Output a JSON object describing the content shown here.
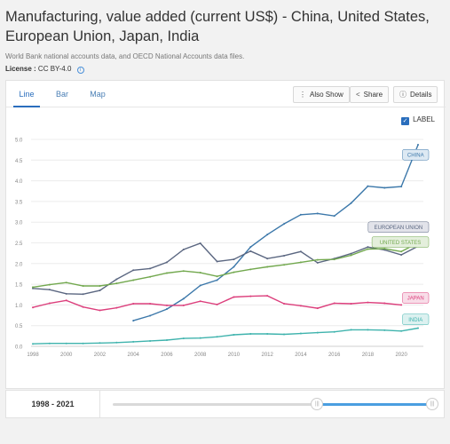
{
  "header": {
    "title": "Manufacturing, value added (current US$) - China, United States, European Union, Japan, India",
    "source": "World Bank national accounts data, and OECD National Accounts data files.",
    "license_label": "License :",
    "license_value": "CC BY-4.0",
    "info_icon": "info-icon"
  },
  "tabs": [
    {
      "label": "Line",
      "active": true
    },
    {
      "label": "Bar",
      "active": false
    },
    {
      "label": "Map",
      "active": false
    }
  ],
  "toolbar": {
    "also_show": "Also Show",
    "share": "Share",
    "details": "Details"
  },
  "label_toggle": {
    "label": "LABEL",
    "checked": true
  },
  "range": {
    "label": "1998 - 2021",
    "start_fraction": 0.64,
    "end_fraction": 1.0
  },
  "colors": {
    "China": "#3c78aa",
    "European Union": "#5b6781",
    "United States": "#72a84e",
    "Japan": "#dc3f7c",
    "India": "#3fb3ad"
  },
  "chart_data": {
    "type": "line",
    "x": [
      1998,
      1999,
      2000,
      2001,
      2002,
      2003,
      2004,
      2005,
      2006,
      2007,
      2008,
      2009,
      2010,
      2011,
      2012,
      2013,
      2014,
      2015,
      2016,
      2017,
      2018,
      2019,
      2020,
      2021
    ],
    "xticks": [
      "1998",
      "2000",
      "2002",
      "2004",
      "2006",
      "2008",
      "2010",
      "2012",
      "2014",
      "2016",
      "2018",
      "2020"
    ],
    "yticks": [
      "0.0",
      "0.5",
      "1.0",
      "1.5",
      "2.0",
      "2.5",
      "3.0",
      "3.5",
      "4.0",
      "4.5",
      "5.0"
    ],
    "ylim": [
      0,
      5
    ],
    "series": [
      {
        "name": "China",
        "label": "CHINA",
        "values": [
          null,
          null,
          null,
          null,
          null,
          null,
          null,
          null,
          null,
          null,
          null,
          null,
          null,
          null,
          null,
          null,
          null,
          null,
          null,
          null,
          null,
          null,
          null,
          null
        ]
      },
      {
        "name": "European Union",
        "label": "EUROPEAN UNION",
        "values": [
          1.4,
          1.37,
          1.27,
          1.26,
          1.35,
          1.62,
          1.84,
          1.88,
          2.03,
          2.34,
          2.49,
          2.05,
          2.1,
          2.3,
          2.12,
          2.19,
          2.29,
          2.02,
          2.12,
          2.24,
          2.4,
          2.33,
          2.21,
          2.42
        ]
      },
      {
        "name": "United States",
        "label": "UNITED STATES",
        "values": [
          1.43,
          1.49,
          1.54,
          1.46,
          1.46,
          1.52,
          1.6,
          1.68,
          1.77,
          1.82,
          1.78,
          1.69,
          1.79,
          1.86,
          1.92,
          1.97,
          2.03,
          2.09,
          2.1,
          2.2,
          2.35,
          2.36,
          2.29,
          2.5
        ]
      },
      {
        "name": "Japan",
        "label": "JAPAN",
        "values": [
          0.94,
          1.04,
          1.11,
          0.95,
          0.87,
          0.93,
          1.03,
          1.03,
          0.99,
          0.99,
          1.09,
          1.01,
          1.19,
          1.21,
          1.22,
          1.03,
          0.98,
          0.92,
          1.04,
          1.03,
          1.06,
          1.04,
          1.0,
          null
        ]
      },
      {
        "name": "India",
        "label": "INDIA",
        "values": [
          0.06,
          0.07,
          0.07,
          0.07,
          0.08,
          0.09,
          0.11,
          0.13,
          0.15,
          0.19,
          0.2,
          0.23,
          0.28,
          0.3,
          0.3,
          0.29,
          0.31,
          0.33,
          0.35,
          0.4,
          0.4,
          0.39,
          0.37,
          0.44
        ]
      }
    ],
    "china_values": [
      null,
      null,
      null,
      null,
      null,
      null,
      0.62,
      0.74,
      0.9,
      1.15,
      1.47,
      1.6,
      1.92,
      2.4,
      2.7,
      2.96,
      3.18,
      3.21,
      3.15,
      3.46,
      3.87,
      3.83,
      3.86,
      4.87
    ]
  }
}
